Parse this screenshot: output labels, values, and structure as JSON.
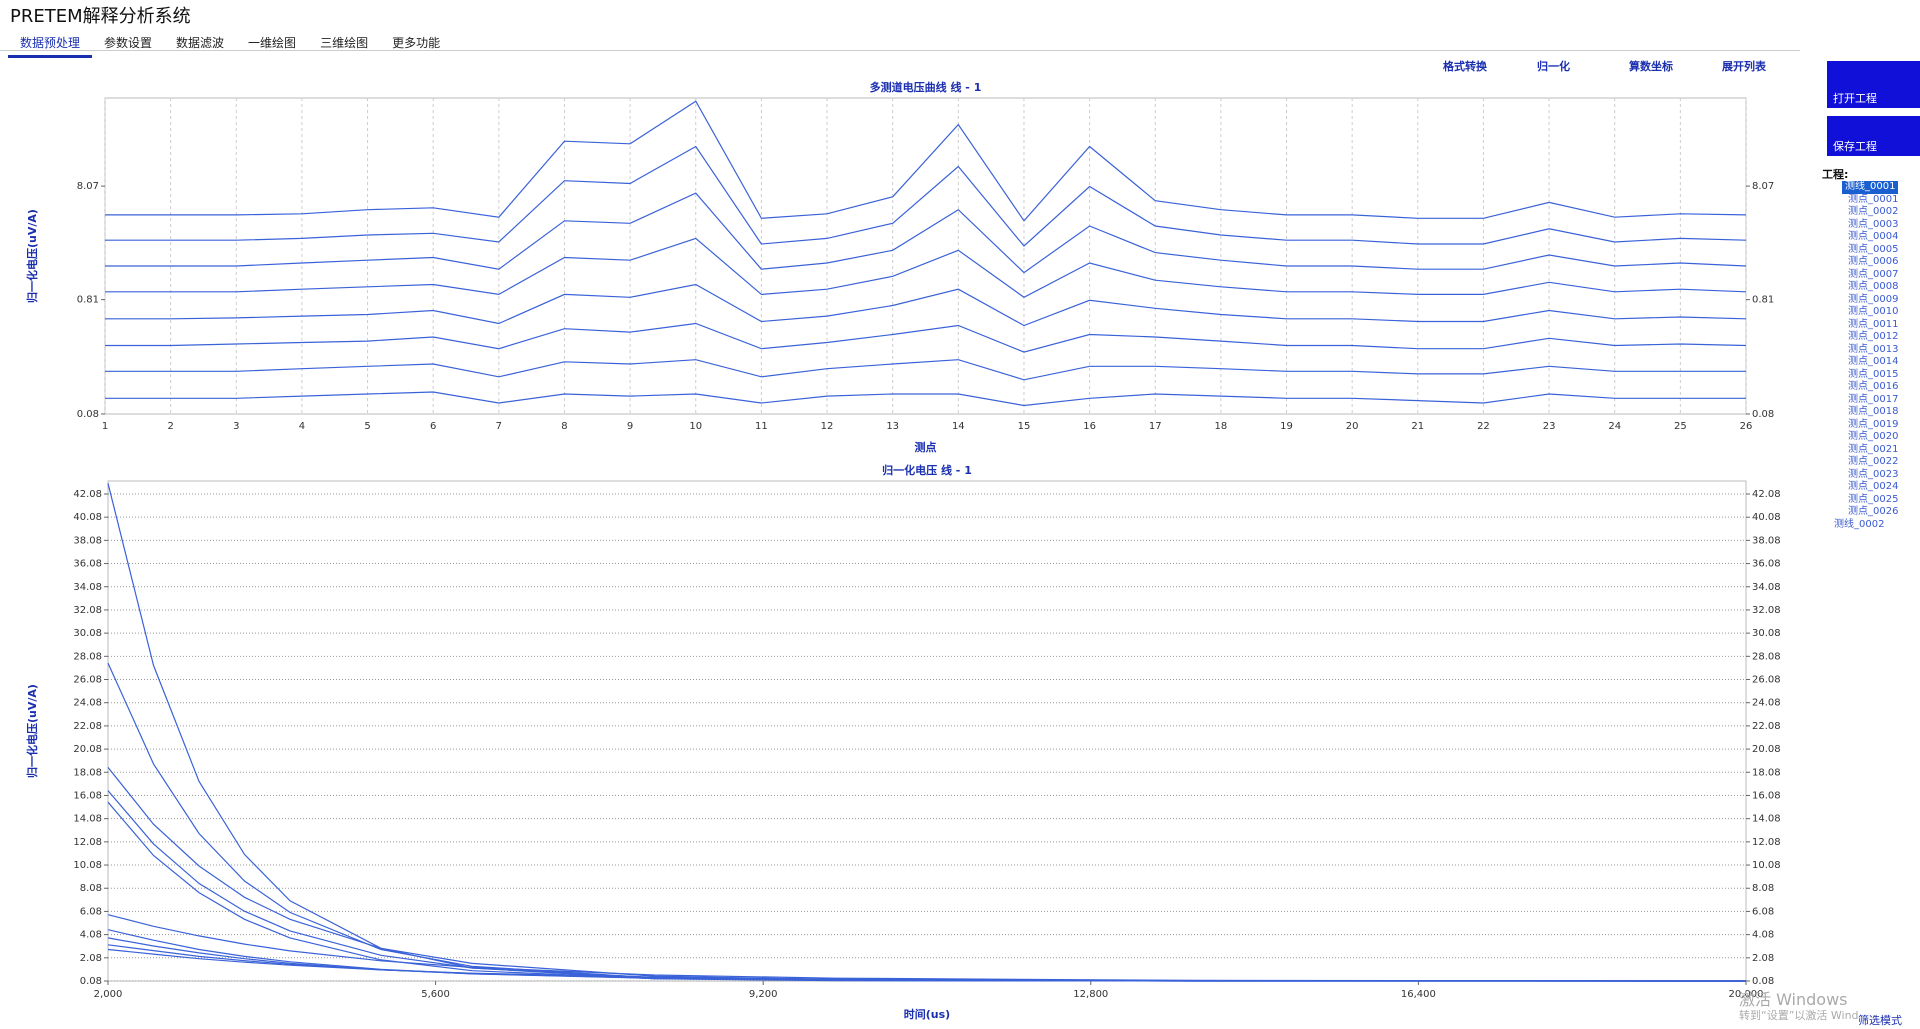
{
  "header": {
    "title": "PRETEM解释分析系统",
    "tabs": [
      "数据预处理",
      "参数设置",
      "数据滤波",
      "一维绘图",
      "三维绘图",
      "更多功能"
    ]
  },
  "toolbar": [
    "格式转换",
    "归一化",
    "算数坐标",
    "展开列表"
  ],
  "side_panel": {
    "buttons": [
      "打开工程",
      "保存工程"
    ],
    "project_label": "工程:",
    "tree": {
      "line": "测线_0001",
      "points": [
        "测点_0001",
        "测点_0002",
        "测点_0003",
        "测点_0004",
        "测点_0005",
        "测点_0006",
        "测点_0007",
        "测点_0008",
        "测点_0009",
        "测点_0010",
        "测点_0011",
        "测点_0012",
        "测点_0013",
        "测点_0014",
        "测点_0015",
        "测点_0016",
        "测点_0017",
        "测点_0018",
        "测点_0019",
        "测点_0020",
        "测点_0021",
        "测点_0022",
        "测点_0023",
        "测点_0024",
        "测点_0025",
        "测点_0026"
      ],
      "next_line": "测线_0002"
    }
  },
  "footer": {
    "watermark_title": "激活 Windows",
    "watermark_text": "转到“设置”以激活 Windows。",
    "mode_button": "筛选模式"
  },
  "chart_data": [
    {
      "type": "line",
      "title": "多测道电压曲线 线 - 1",
      "x_label": "测点",
      "y_label": "归一化电压(uV/A)",
      "log_y": true,
      "grid": "x",
      "categories": [
        "1",
        "2",
        "3",
        "4",
        "5",
        "6",
        "7",
        "8",
        "9",
        "10",
        "11",
        "12",
        "13",
        "14",
        "15",
        "16",
        "17",
        "18",
        "19",
        "20",
        "21",
        "22",
        "23",
        "24",
        "25",
        "26"
      ],
      "ylim": [
        0.08,
        48
      ],
      "yticks": [
        0.08,
        0.81,
        8.07
      ],
      "series": [
        {
          "color": "#3a62d8",
          "values": [
            4.5,
            4.5,
            4.5,
            4.6,
            5,
            5.2,
            4.3,
            20,
            19,
            45,
            4.2,
            4.6,
            6.5,
            28,
            4,
            18,
            6,
            5,
            4.5,
            4.5,
            4.2,
            4.2,
            5.8,
            4.3,
            4.6,
            4.5
          ]
        },
        {
          "color": "#3a62d8",
          "values": [
            2.7,
            2.7,
            2.7,
            2.8,
            3,
            3.1,
            2.6,
            9,
            8.5,
            18,
            2.5,
            2.8,
            3.8,
            12,
            2.4,
            8,
            3.6,
            3,
            2.7,
            2.7,
            2.5,
            2.5,
            3.4,
            2.6,
            2.8,
            2.7
          ]
        },
        {
          "color": "#3a62d8",
          "values": [
            1.6,
            1.6,
            1.6,
            1.7,
            1.8,
            1.9,
            1.5,
            4,
            3.8,
            7,
            1.5,
            1.7,
            2.2,
            5,
            1.4,
            3.6,
            2.1,
            1.8,
            1.6,
            1.6,
            1.5,
            1.5,
            2,
            1.6,
            1.7,
            1.6
          ]
        },
        {
          "color": "#3a62d8",
          "values": [
            0.95,
            0.95,
            0.95,
            1,
            1.05,
            1.1,
            0.9,
            1.9,
            1.8,
            2.8,
            0.9,
            1,
            1.3,
            2.2,
            0.85,
            1.7,
            1.2,
            1.05,
            0.95,
            0.95,
            0.9,
            0.9,
            1.15,
            0.95,
            1,
            0.95
          ]
        },
        {
          "color": "#3a62d8",
          "values": [
            0.55,
            0.55,
            0.56,
            0.58,
            0.6,
            0.65,
            0.5,
            0.9,
            0.85,
            1.1,
            0.52,
            0.58,
            0.72,
            1,
            0.48,
            0.8,
            0.68,
            0.6,
            0.55,
            0.55,
            0.52,
            0.52,
            0.65,
            0.55,
            0.57,
            0.55
          ]
        },
        {
          "color": "#3a62d8",
          "values": [
            0.32,
            0.32,
            0.33,
            0.34,
            0.35,
            0.38,
            0.3,
            0.45,
            0.42,
            0.5,
            0.3,
            0.34,
            0.4,
            0.48,
            0.28,
            0.4,
            0.38,
            0.35,
            0.32,
            0.32,
            0.3,
            0.3,
            0.37,
            0.32,
            0.33,
            0.32
          ]
        },
        {
          "color": "#3a62d8",
          "values": [
            0.19,
            0.19,
            0.19,
            0.2,
            0.21,
            0.22,
            0.17,
            0.23,
            0.22,
            0.24,
            0.17,
            0.2,
            0.22,
            0.24,
            0.16,
            0.21,
            0.21,
            0.2,
            0.19,
            0.19,
            0.18,
            0.18,
            0.21,
            0.19,
            0.19,
            0.19
          ]
        },
        {
          "color": "#3a62d8",
          "values": [
            0.11,
            0.11,
            0.11,
            0.115,
            0.12,
            0.125,
            0.1,
            0.12,
            0.115,
            0.12,
            0.1,
            0.115,
            0.12,
            0.12,
            0.095,
            0.11,
            0.12,
            0.115,
            0.11,
            0.11,
            0.105,
            0.1,
            0.12,
            0.11,
            0.11,
            0.11
          ]
        }
      ]
    },
    {
      "type": "line",
      "title": "归一化电压 线 - 1",
      "x_label": "时间(us)",
      "y_label": "归一化电压(uV/A)",
      "log_y": false,
      "grid": "y",
      "x": [
        2000,
        2500,
        3000,
        3500,
        4000,
        5000,
        6000,
        8000,
        10000,
        14000,
        20000
      ],
      "xlim": [
        2000,
        20000
      ],
      "xticks": [
        {
          "value": 2000,
          "label": "2,000"
        },
        {
          "value": 5600,
          "label": "5,600"
        },
        {
          "value": 9200,
          "label": "9,200"
        },
        {
          "value": 12800,
          "label": "12,800"
        },
        {
          "value": 16400,
          "label": "16,400"
        },
        {
          "value": 20000,
          "label": "20,000"
        }
      ],
      "ylim": [
        0.08,
        43.2
      ],
      "yticks": [
        0.08,
        2.08,
        4.08,
        6.08,
        8.08,
        10.08,
        12.08,
        14.08,
        16.08,
        18.08,
        20.08,
        22.08,
        24.08,
        26.08,
        28.08,
        30.08,
        32.08,
        34.08,
        36.08,
        38.08,
        40.08,
        42.08
      ],
      "series": [
        {
          "color": "#3a62d8",
          "values": [
            43,
            27.3,
            17.3,
            11.0,
            7.0,
            2.9,
            1.2,
            0.27,
            0.11,
            0.08,
            0.08
          ]
        },
        {
          "color": "#3a62d8",
          "values": [
            27.5,
            18.8,
            12.8,
            8.7,
            6.0,
            2.8,
            1.35,
            0.35,
            0.14,
            0.08,
            0.08
          ]
        },
        {
          "color": "#3a62d8",
          "values": [
            18.5,
            13.6,
            10.0,
            7.3,
            5.4,
            2.9,
            1.6,
            0.5,
            0.2,
            0.09,
            0.08
          ]
        },
        {
          "color": "#3a62d8",
          "values": [
            16.5,
            11.9,
            8.5,
            6.1,
            4.4,
            2.3,
            1.2,
            0.38,
            0.16,
            0.08,
            0.08
          ]
        },
        {
          "color": "#3a62d8",
          "values": [
            15.5,
            10.9,
            7.7,
            5.4,
            3.8,
            1.9,
            0.97,
            0.29,
            0.13,
            0.08,
            0.08
          ]
        },
        {
          "color": "#3a62d8",
          "values": [
            5.8,
            4.8,
            3.97,
            3.26,
            2.68,
            1.82,
            1.25,
            0.6,
            0.32,
            0.13,
            0.08
          ]
        },
        {
          "color": "#3a62d8",
          "values": [
            4.5,
            3.6,
            2.8,
            2.2,
            1.74,
            1.08,
            0.69,
            0.3,
            0.16,
            0.09,
            0.08
          ]
        },
        {
          "color": "#3a62d8",
          "values": [
            3.8,
            3.1,
            2.5,
            2.0,
            1.61,
            1.05,
            0.7,
            0.33,
            0.18,
            0.1,
            0.08
          ]
        },
        {
          "color": "#3a62d8",
          "values": [
            3.2,
            2.7,
            2.2,
            1.83,
            1.52,
            1.05,
            0.73,
            0.38,
            0.2,
            0.1,
            0.08
          ]
        },
        {
          "color": "#3a62d8",
          "values": [
            2.8,
            2.4,
            2.0,
            1.7,
            1.44,
            1.04,
            0.75,
            0.42,
            0.24,
            0.11,
            0.08
          ]
        }
      ]
    }
  ]
}
